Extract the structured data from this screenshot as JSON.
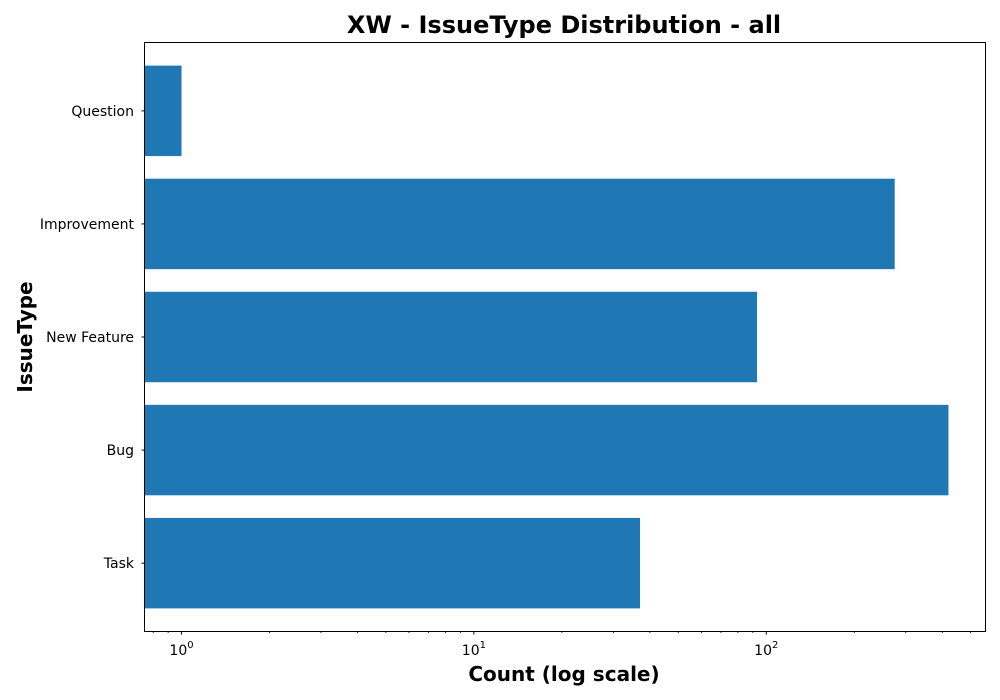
{
  "chart_data": {
    "type": "bar",
    "orientation": "horizontal",
    "title": "XW - IssueType Distribution - all",
    "xlabel": "Count (log scale)",
    "ylabel": "IssueType",
    "x_scale": "log",
    "xlim": [
      0.75,
      560
    ],
    "x_major_ticks": [
      {
        "value": 1,
        "base": "10",
        "exp": "0"
      },
      {
        "value": 10,
        "base": "10",
        "exp": "1"
      },
      {
        "value": 100,
        "base": "10",
        "exp": "2"
      }
    ],
    "x_minor_ticks": [
      0.8,
      0.9,
      2,
      3,
      4,
      5,
      6,
      7,
      8,
      9,
      20,
      30,
      40,
      50,
      60,
      70,
      80,
      90,
      200,
      300,
      400,
      500
    ],
    "categories": [
      "Question",
      "Improvement",
      "New Feature",
      "Bug",
      "Task"
    ],
    "values": [
      1,
      275,
      93,
      420,
      37
    ],
    "bar_color": "#1f77b4",
    "grid": false,
    "legend": "none"
  }
}
